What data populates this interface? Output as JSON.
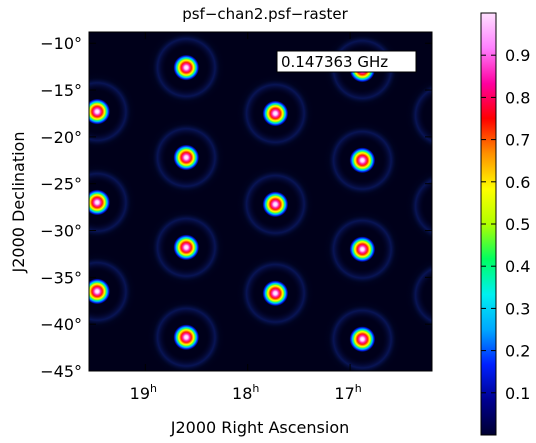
{
  "chart_data": {
    "type": "heatmap",
    "title": "psf−chan2.psf−raster",
    "annotation": "0.147363 GHz",
    "xlabel": "J2000 Right Ascension",
    "ylabel": "J2000 Declination",
    "x_ticks": [
      {
        "value": 19,
        "label": "19",
        "unit": "h"
      },
      {
        "value": 18,
        "label": "18",
        "unit": "h"
      },
      {
        "value": 17,
        "label": "17",
        "unit": "h"
      }
    ],
    "y_ticks": [
      {
        "value": -10,
        "label": "−10°"
      },
      {
        "value": -15,
        "label": "−15°"
      },
      {
        "value": -20,
        "label": "−20°"
      },
      {
        "value": -25,
        "label": "−25°"
      },
      {
        "value": -30,
        "label": "−30°"
      },
      {
        "value": -35,
        "label": "−35°"
      },
      {
        "value": -40,
        "label": "−40°"
      },
      {
        "value": -45,
        "label": "−45°"
      }
    ],
    "xlim_hours": [
      19.55,
      16.2
    ],
    "ylim_deg": [
      -45,
      -8.8
    ],
    "grid": false,
    "colorbar": {
      "range": [
        0,
        1
      ],
      "tick_values": [
        0.1,
        0.2,
        0.3,
        0.4,
        0.5,
        0.6,
        0.7,
        0.8,
        0.9
      ],
      "tick_labels": [
        "0.1",
        "0.2",
        "0.3",
        "0.4",
        "0.5",
        "0.6",
        "0.7",
        "0.8",
        "0.9"
      ],
      "colormap": [
        "#000030",
        "#000090",
        "#0020ff",
        "#00a8ff",
        "#00f0f0",
        "#00ff60",
        "#b0ff00",
        "#ffff00",
        "#ff9000",
        "#ff0000",
        "#ff00a0",
        "#ff80ff",
        "#ffe0ff"
      ]
    },
    "peaks": [
      {
        "ra": 18.6,
        "dec": -12.6,
        "value": 1.0
      },
      {
        "ra": 16.88,
        "dec": -12.8,
        "value": 1.0
      },
      {
        "ra": 19.47,
        "dec": -17.3,
        "value": 1.0
      },
      {
        "ra": 17.73,
        "dec": -17.5,
        "value": 1.0
      },
      {
        "ra": 16.08,
        "dec": -17.7,
        "value": 1.0
      },
      {
        "ra": 18.6,
        "dec": -22.2,
        "value": 1.0
      },
      {
        "ra": 16.88,
        "dec": -22.5,
        "value": 1.0
      },
      {
        "ra": 19.47,
        "dec": -27.0,
        "value": 1.0
      },
      {
        "ra": 17.73,
        "dec": -27.2,
        "value": 1.0
      },
      {
        "ra": 16.08,
        "dec": -27.4,
        "value": 1.0
      },
      {
        "ra": 18.6,
        "dec": -31.8,
        "value": 1.0
      },
      {
        "ra": 16.88,
        "dec": -32.0,
        "value": 1.0
      },
      {
        "ra": 19.47,
        "dec": -36.5,
        "value": 1.0
      },
      {
        "ra": 17.73,
        "dec": -36.7,
        "value": 1.0
      },
      {
        "ra": 16.08,
        "dec": -36.9,
        "value": 1.0
      },
      {
        "ra": 18.6,
        "dec": -41.4,
        "value": 1.0
      },
      {
        "ra": 16.88,
        "dec": -41.6,
        "value": 1.0
      }
    ]
  }
}
